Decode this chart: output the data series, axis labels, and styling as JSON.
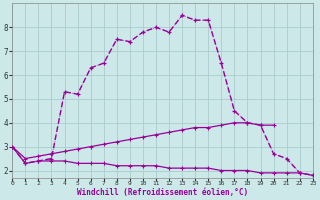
{
  "background_color": "#cce8e8",
  "grid_color": "#aacccc",
  "line_color_dark": "#990099",
  "line_color_med": "#cc44cc",
  "xlabel": "Windchill (Refroidissement éolien,°C)",
  "x_hours": [
    0,
    1,
    2,
    3,
    4,
    5,
    6,
    7,
    8,
    9,
    10,
    11,
    12,
    13,
    14,
    15,
    16,
    17,
    18,
    19,
    20,
    21,
    22,
    23
  ],
  "main_curve_y": [
    3.0,
    2.3,
    2.4,
    2.5,
    5.3,
    5.2,
    6.3,
    6.5,
    7.5,
    7.4,
    7.8,
    8.0,
    7.8,
    8.5,
    8.3,
    8.3,
    6.5,
    4.5,
    4.0,
    3.9,
    2.7,
    2.5,
    1.9,
    1.8
  ],
  "dotted_curve_y": [
    3.0,
    2.3,
    2.4,
    2.5,
    5.3,
    5.2,
    6.3,
    6.5,
    7.5,
    7.4,
    7.8,
    8.0,
    7.8,
    8.5,
    8.3,
    8.3,
    6.5,
    4.5,
    4.0,
    3.9,
    2.7,
    2.5,
    1.9,
    1.8
  ],
  "upper_line_y": [
    3.0,
    2.5,
    2.6,
    2.7,
    2.8,
    2.9,
    3.0,
    3.1,
    3.2,
    3.3,
    3.4,
    3.5,
    3.6,
    3.7,
    3.8,
    3.8,
    3.9,
    4.0,
    4.0,
    3.9,
    3.9,
    null,
    null,
    1.8
  ],
  "lower_line_y": [
    3.0,
    2.3,
    2.4,
    2.4,
    2.4,
    2.3,
    2.3,
    2.3,
    2.2,
    2.2,
    2.2,
    2.2,
    2.1,
    2.1,
    2.1,
    2.1,
    2.0,
    2.0,
    2.0,
    1.9,
    1.9,
    1.9,
    1.9,
    1.8
  ],
  "xlim": [
    0,
    23
  ],
  "ylim": [
    1.7,
    9.0
  ],
  "yticks": [
    2,
    3,
    4,
    5,
    6,
    7,
    8
  ],
  "xticks": [
    0,
    1,
    2,
    3,
    4,
    5,
    6,
    7,
    8,
    9,
    10,
    11,
    12,
    13,
    14,
    15,
    16,
    17,
    18,
    19,
    20,
    21,
    22,
    23
  ]
}
